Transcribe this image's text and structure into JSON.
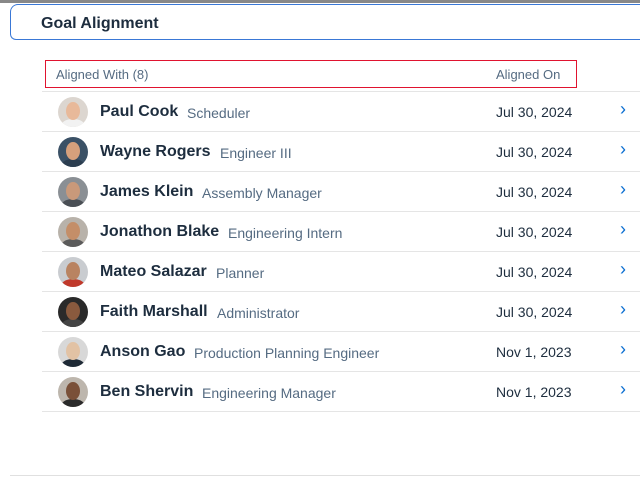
{
  "header": {
    "title": "Goal Alignment"
  },
  "table": {
    "col_aligned_with": "Aligned With (8)",
    "col_aligned_on": "Aligned On",
    "rows": [
      {
        "name": "Paul Cook",
        "role": "Scheduler",
        "date": "Jul 30, 2024",
        "skin": "#e8b99a",
        "bg": "#dcd6d0",
        "shirt": "#f2f2f2"
      },
      {
        "name": "Wayne Rogers",
        "role": "Engineer III",
        "date": "Jul 30, 2024",
        "skin": "#d6a07c",
        "bg": "#3b5166",
        "shirt": "#2c3e50"
      },
      {
        "name": "James Klein",
        "role": "Assembly Manager",
        "date": "Jul 30, 2024",
        "skin": "#c9997a",
        "bg": "#8a8f94",
        "shirt": "#4a4f55"
      },
      {
        "name": "Jonathon Blake",
        "role": "Engineering Intern",
        "date": "Jul 30, 2024",
        "skin": "#c48e68",
        "bg": "#b8b2aa",
        "shirt": "#5b5b5b"
      },
      {
        "name": "Mateo Salazar",
        "role": "Planner",
        "date": "Jul 30, 2024",
        "skin": "#b98361",
        "bg": "#c9ccd0",
        "shirt": "#c0392b"
      },
      {
        "name": "Faith Marshall",
        "role": "Administrator",
        "date": "Jul 30, 2024",
        "skin": "#8a5a3e",
        "bg": "#2a2a2a",
        "shirt": "#444"
      },
      {
        "name": "Anson Gao",
        "role": "Production Planning Engineer",
        "date": "Nov 1, 2023",
        "skin": "#e2c2a4",
        "bg": "#d8d8d8",
        "shirt": "#1f2a36"
      },
      {
        "name": "Ben Shervin",
        "role": "Engineering Manager",
        "date": "Nov 1, 2023",
        "skin": "#7a5038",
        "bg": "#bdb6ad",
        "shirt": "#2a2a2a"
      }
    ]
  },
  "colors": {
    "accent": "#0a6ed1",
    "highlight_border": "#e0132f",
    "header_border": "#3a78d6"
  },
  "icons": {
    "row_action": "chevron-right-icon"
  }
}
